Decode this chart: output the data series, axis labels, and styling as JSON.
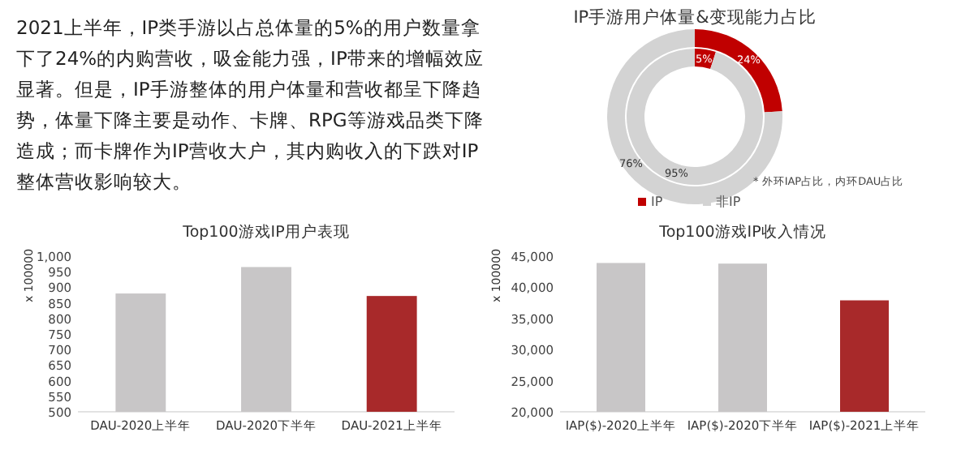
{
  "chart_data": [
    {
      "type": "other",
      "annotations": [
        "2021上半年，IP类手游以占总体量的5%的用户数量拿下了24%的内购营收，吸金能力强，IP带来的增幅效应显著。但是，IP手游整体的用户体量和营收都呈下降趋势，体量下降主要是动作、卡牌、RPG等游戏品类下降造成；而卡牌作为IP营收大户，其内购收入的下跌对IP整体营收影响较大。"
      ]
    },
    {
      "type": "donut",
      "title": "IP手游用户体量&变现能力占比",
      "categories": [
        "IP",
        "非IP"
      ],
      "colors": [
        "#c00000",
        "#d3d3d3"
      ],
      "legend": "bottom",
      "series": [
        {
          "values": [
            5,
            95
          ],
          "value_labels": [
            "5%",
            "95%"
          ]
        },
        {
          "values": [
            24,
            76
          ],
          "value_labels": [
            "24%",
            "76%"
          ]
        }
      ],
      "annotations": [
        "* 外环IAP占比，内环DAU占比"
      ]
    },
    {
      "type": "bar",
      "title": "Top100游戏IP用户表现",
      "ylabel": "x 100000",
      "categories": [
        "DAU-2020上半年",
        "DAU-2020下半年",
        "DAU-2021上半年"
      ],
      "values": [
        880,
        965,
        872
      ],
      "colors": [
        "#c8c6c7",
        "#c8c6c7",
        "#a8292a"
      ],
      "ylim": [
        500,
        1000
      ],
      "yticks": [
        500,
        550,
        600,
        650,
        700,
        750,
        800,
        850,
        900,
        950,
        {
          "value": 1000,
          "label": "1,000"
        }
      ]
    },
    {
      "type": "bar",
      "title": "Top100游戏IP收入情况",
      "ylabel": "x 100000",
      "categories": [
        "IAP($)-2020上半年",
        "IAP($)-2020下半年",
        "IAP($)-2021上半年"
      ],
      "values": [
        43900,
        43800,
        37900
      ],
      "colors": [
        "#c8c6c7",
        "#c8c6c7",
        "#a8292a"
      ],
      "ylim": [
        20000,
        45000
      ],
      "yticks": [
        {
          "value": 20000,
          "label": "20,000"
        },
        {
          "value": 25000,
          "label": "25,000"
        },
        {
          "value": 30000,
          "label": "30,000"
        },
        {
          "value": 35000,
          "label": "35,000"
        },
        {
          "value": 40000,
          "label": "40,000"
        },
        {
          "value": 45000,
          "label": "45,000"
        }
      ]
    }
  ]
}
